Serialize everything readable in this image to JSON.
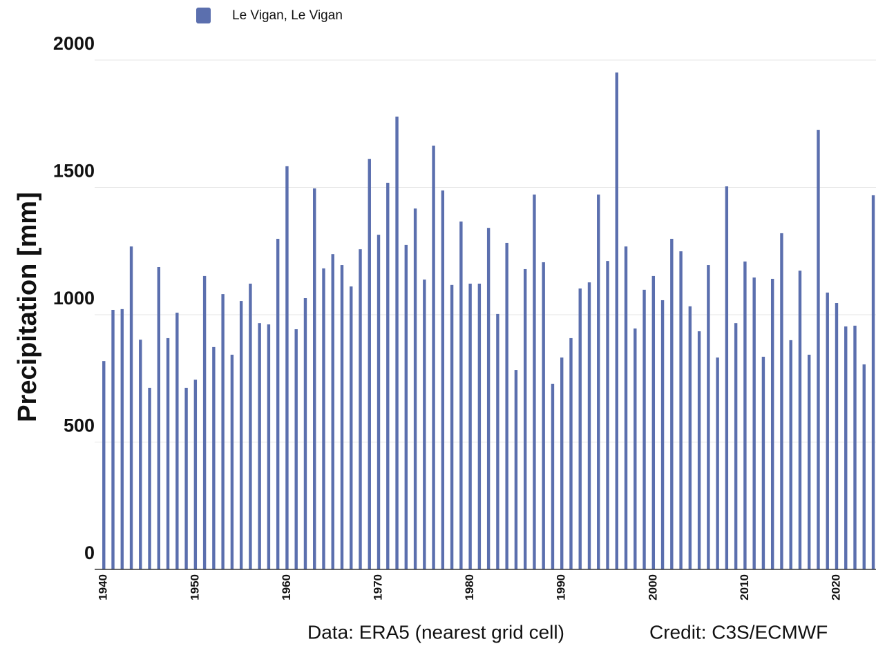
{
  "chart_data": {
    "type": "bar",
    "legend_label": "Le Vigan, Le Vigan",
    "ylabel": "Precipitation [mm]",
    "annotations": [
      "Data: ERA5 (nearest grid cell)",
      "Credit: C3S/ECMWF"
    ],
    "color": "#5b6fae",
    "grid": true,
    "x": [
      1940,
      1941,
      1942,
      1943,
      1944,
      1945,
      1946,
      1947,
      1948,
      1949,
      1950,
      1951,
      1952,
      1953,
      1954,
      1955,
      1956,
      1957,
      1958,
      1959,
      1960,
      1961,
      1962,
      1963,
      1964,
      1965,
      1966,
      1967,
      1968,
      1969,
      1970,
      1971,
      1972,
      1973,
      1974,
      1975,
      1976,
      1977,
      1978,
      1979,
      1980,
      1981,
      1982,
      1983,
      1984,
      1985,
      1986,
      1987,
      1988,
      1989,
      1990,
      1991,
      1992,
      1993,
      1994,
      1995,
      1996,
      1997,
      1998,
      1999,
      2000,
      2001,
      2002,
      2003,
      2004,
      2005,
      2006,
      2007,
      2008,
      2009,
      2010,
      2011,
      2012,
      2013,
      2014,
      2015,
      2016,
      2017,
      2018,
      2019,
      2020,
      2021,
      2022,
      2023,
      2024
    ],
    "values": [
      818,
      1019,
      1022,
      1268,
      902,
      713,
      1187,
      908,
      1008,
      713,
      745,
      1152,
      873,
      1081,
      843,
      1054,
      1122,
      967,
      962,
      1298,
      1583,
      943,
      1065,
      1496,
      1182,
      1238,
      1195,
      1111,
      1257,
      1612,
      1314,
      1518,
      1778,
      1274,
      1417,
      1138,
      1664,
      1488,
      1117,
      1366,
      1122,
      1122,
      1341,
      1003,
      1282,
      783,
      1179,
      1472,
      1206,
      729,
      832,
      908,
      1103,
      1127,
      1472,
      1211,
      1951,
      1268,
      946,
      1098,
      1152,
      1057,
      1298,
      1249,
      1033,
      935,
      1195,
      832,
      1504,
      967,
      1209,
      1146,
      835,
      1141,
      1320,
      900,
      1173,
      843,
      1726,
      1087,
      1046,
      954,
      957,
      805,
      1469
    ],
    "xlim": [
      1939,
      2024.3
    ],
    "xticks": [
      1940,
      1950,
      1960,
      1970,
      1980,
      1990,
      2000,
      2010,
      2020
    ],
    "ylim": [
      0,
      2000
    ],
    "yticks": [
      0,
      500,
      1000,
      1500,
      2000
    ]
  }
}
